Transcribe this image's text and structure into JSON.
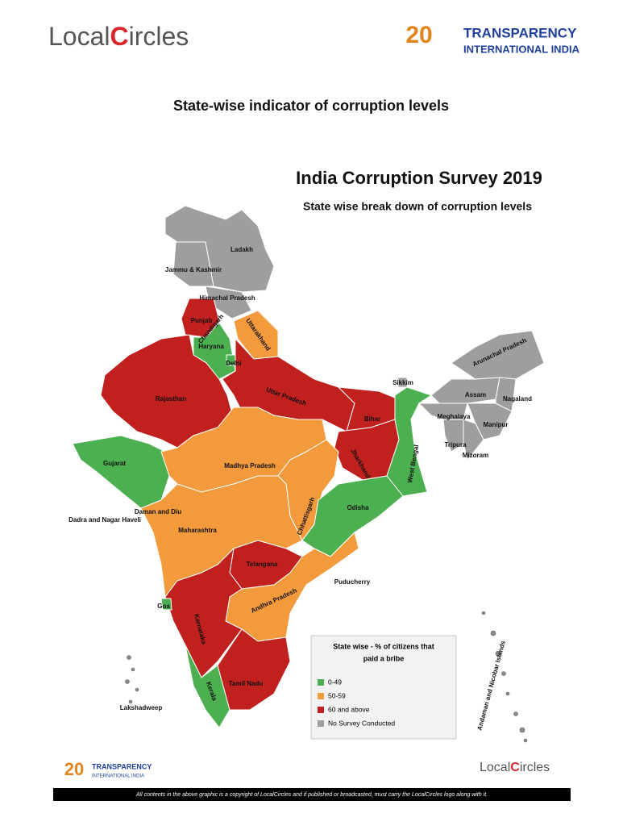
{
  "header": {
    "logo_left": [
      "Local",
      "C",
      "ircles"
    ],
    "logo_right_badge": "20",
    "logo_right": [
      "TRANSPARENCY",
      "INTERNATIONAL INDIA"
    ],
    "title": "State-wise indicator of corruption levels"
  },
  "map": {
    "title": "India Corruption Survey 2019",
    "subtitle": "State wise break down of corruption levels",
    "legend": {
      "title": [
        "State wise - % of citizens that",
        "paid a bribe"
      ],
      "items": [
        {
          "label": "0-49",
          "color": "#4caf50"
        },
        {
          "label": "50-59",
          "color": "#f39a3c"
        },
        {
          "label": "60 and above",
          "color": "#c0211f"
        },
        {
          "label": "No Survey Conducted",
          "color": "#9e9e9e"
        }
      ]
    },
    "states": [
      {
        "name": "Ladakh",
        "color": "#9e9e9e"
      },
      {
        "name": "Jammu & Kashmir",
        "color": "#9e9e9e"
      },
      {
        "name": "Himachal Pradesh",
        "color": "#9e9e9e"
      },
      {
        "name": "Punjab",
        "color": "#c0211f"
      },
      {
        "name": "Haryana",
        "color": "#4caf50"
      },
      {
        "name": "Delhi",
        "color": "#4caf50"
      },
      {
        "name": "Uttarakhand",
        "color": "#f39a3c"
      },
      {
        "name": "Rajasthan",
        "color": "#c0211f"
      },
      {
        "name": "Uttar Pradesh",
        "color": "#c0211f"
      },
      {
        "name": "Bihar",
        "color": "#c0211f"
      },
      {
        "name": "Jharkhand",
        "color": "#c0211f"
      },
      {
        "name": "West Bengal",
        "color": "#4caf50"
      },
      {
        "name": "Sikkim",
        "color": "#9e9e9e"
      },
      {
        "name": "Arunachal Pradesh",
        "color": "#9e9e9e"
      },
      {
        "name": "Assam",
        "color": "#9e9e9e"
      },
      {
        "name": "Nagaland",
        "color": "#9e9e9e"
      },
      {
        "name": "Meghalaya",
        "color": "#9e9e9e"
      },
      {
        "name": "Manipur",
        "color": "#9e9e9e"
      },
      {
        "name": "Tripura",
        "color": "#9e9e9e"
      },
      {
        "name": "Mizoram",
        "color": "#9e9e9e"
      },
      {
        "name": "Gujarat",
        "color": "#4caf50"
      },
      {
        "name": "Madhya Pradesh",
        "color": "#f39a3c"
      },
      {
        "name": "Chhattisgarh",
        "color": "#f39a3c"
      },
      {
        "name": "Odisha",
        "color": "#4caf50"
      },
      {
        "name": "Maharashtra",
        "color": "#f39a3c"
      },
      {
        "name": "Telangana",
        "color": "#c0211f"
      },
      {
        "name": "Andhra Pradesh",
        "color": "#f39a3c"
      },
      {
        "name": "Karnataka",
        "color": "#c0211f"
      },
      {
        "name": "Goa",
        "color": "#4caf50"
      },
      {
        "name": "Kerala",
        "color": "#4caf50"
      },
      {
        "name": "Tamil Nadu",
        "color": "#c0211f"
      },
      {
        "name": "Chandigarh"
      },
      {
        "name": "Daman and Diu"
      },
      {
        "name": "Dadra and Nagar Haveli"
      },
      {
        "name": "Puducherry"
      },
      {
        "name": "Lakshadweep"
      },
      {
        "name": "Andaman and Nicobar Islands"
      }
    ]
  },
  "footer": {
    "logo_left_badge": "20",
    "logo_left": [
      "TRANSPARENCY",
      "INTERNATIONAL INDIA"
    ],
    "logo_right": [
      "Local",
      "C",
      "ircles"
    ],
    "copyright": "All contents in the above graphic is a copyright of LocalCircles and if published or broadcasted, must carry the LocalCircles logo along with it."
  }
}
